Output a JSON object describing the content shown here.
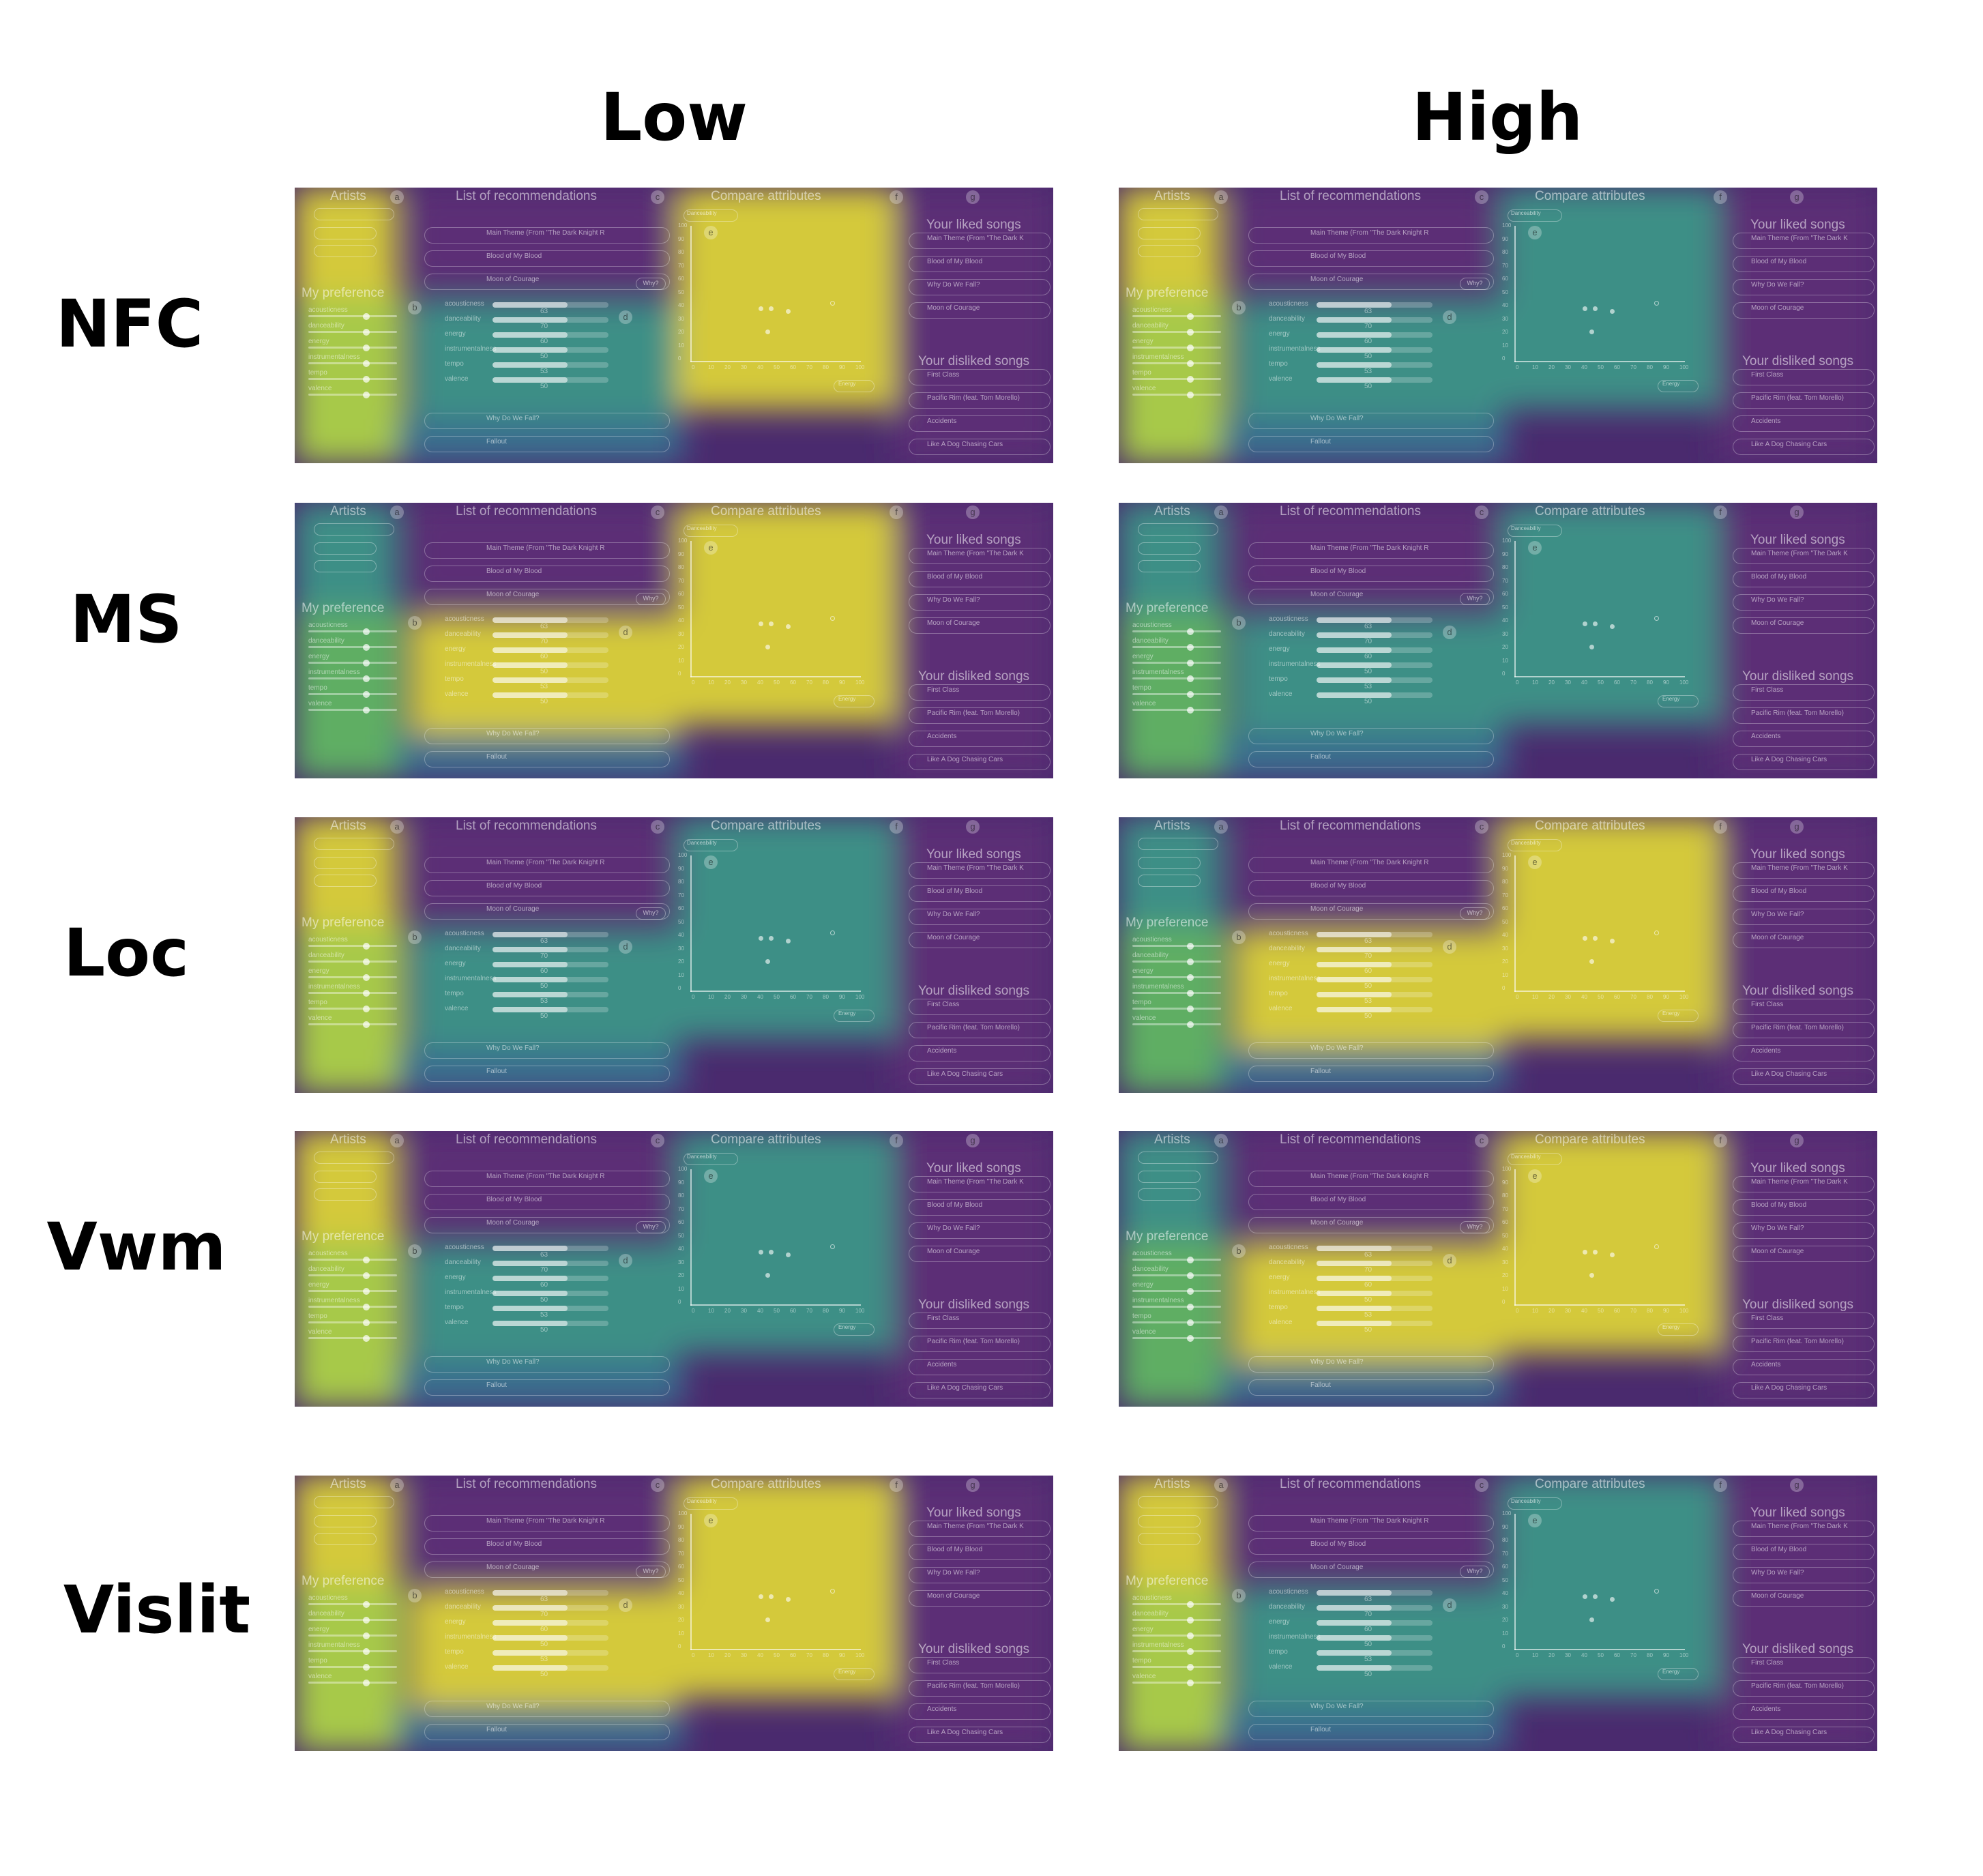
{
  "columns": [
    "Low",
    "High"
  ],
  "rows": [
    "NFC",
    "MS",
    "Loc",
    "Vwm",
    "Vislit"
  ],
  "ui": {
    "artists_title": "Artists",
    "recs_title": "List of recommendations",
    "compare_title": "Compare attributes",
    "my_preference": "My preference",
    "liked_title": "Your liked songs",
    "disliked_title": "Your disliked songs",
    "badges": [
      "a",
      "b",
      "c",
      "d",
      "e",
      "f",
      "g"
    ],
    "rec_songs": [
      "Main Theme (From \"The Dark Knight R",
      "Blood of My Blood",
      "Moon of Courage",
      "Why Do We Fall?",
      "Fallout"
    ],
    "attribute_labels": [
      "acousticness",
      "danceability",
      "energy",
      "instrumentalness",
      "tempo",
      "valence"
    ],
    "attribute_values": [
      "63",
      "70",
      "60",
      "50",
      "53",
      "50"
    ],
    "liked_songs": [
      "Main Theme (From \"The Dark K",
      "Blood of My Blood",
      "Why Do We Fall?",
      "Moon of Courage"
    ],
    "disliked_songs": [
      "First Class",
      "Pacific Rim (feat. Tom Morello)",
      "Accidents",
      "Like A Dog Chasing Cars"
    ],
    "dropdown_x": "Danceability",
    "dropdown_y": "Energy",
    "why_button": "Why?",
    "y_ticks": [
      "100",
      "90",
      "80",
      "70",
      "60",
      "50",
      "40",
      "30",
      "20",
      "10",
      "0"
    ],
    "x_ticks": [
      "0",
      "10",
      "20",
      "30",
      "40",
      "50",
      "60",
      "70",
      "80",
      "90",
      "100"
    ]
  },
  "heatmap": {
    "legend": "viridis",
    "colors": {
      "yellow": "#d4c93a",
      "yellow_green": "#a7c94a",
      "green": "#5fae63",
      "teal": "#3e8f86",
      "blue": "#3b6e8f",
      "purple": "#5b2f76",
      "deep_purple": "#4a2a6e"
    },
    "panels": [
      {
        "row": "NFC",
        "column": "Low",
        "attention": {
          "artists": "high",
          "preference": "high",
          "recommendations": "medium",
          "compare": "high",
          "liked": "low"
        }
      },
      {
        "row": "NFC",
        "column": "High",
        "attention": {
          "artists": "high",
          "preference": "high",
          "recommendations": "medium",
          "compare": "medium",
          "liked": "low"
        }
      },
      {
        "row": "MS",
        "column": "Low",
        "attention": {
          "artists": "medium",
          "preference": "medium",
          "recommendations": "high",
          "compare": "high",
          "liked": "low"
        }
      },
      {
        "row": "MS",
        "column": "High",
        "attention": {
          "artists": "medium",
          "preference": "medium",
          "recommendations": "medium",
          "compare": "medium",
          "liked": "low"
        }
      },
      {
        "row": "Loc",
        "column": "Low",
        "attention": {
          "artists": "high",
          "preference": "high",
          "recommendations": "medium",
          "compare": "medium",
          "liked": "low"
        }
      },
      {
        "row": "Loc",
        "column": "High",
        "attention": {
          "artists": "medium",
          "preference": "medium",
          "recommendations": "high",
          "compare": "high",
          "liked": "low"
        }
      },
      {
        "row": "Vwm",
        "column": "Low",
        "attention": {
          "artists": "high",
          "preference": "high",
          "recommendations": "medium",
          "compare": "medium",
          "liked": "low"
        }
      },
      {
        "row": "Vwm",
        "column": "High",
        "attention": {
          "artists": "medium",
          "preference": "medium",
          "recommendations": "high",
          "compare": "high",
          "liked": "low"
        }
      },
      {
        "row": "Vislit",
        "column": "Low",
        "attention": {
          "artists": "high",
          "preference": "high",
          "recommendations": "high",
          "compare": "high",
          "liked": "low"
        }
      },
      {
        "row": "Vislit",
        "column": "High",
        "attention": {
          "artists": "high",
          "preference": "high",
          "recommendations": "medium",
          "compare": "medium",
          "liked": "low"
        }
      }
    ]
  }
}
